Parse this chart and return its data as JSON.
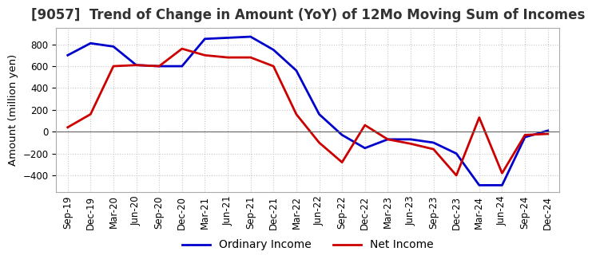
{
  "title": "[9057]  Trend of Change in Amount (YoY) of 12Mo Moving Sum of Incomes",
  "ylabel": "Amount (million yen)",
  "background_color": "#ffffff",
  "grid_color": "#c8c8c8",
  "x_labels": [
    "Sep-19",
    "Dec-19",
    "Mar-20",
    "Jun-20",
    "Sep-20",
    "Dec-20",
    "Mar-21",
    "Jun-21",
    "Sep-21",
    "Dec-21",
    "Mar-22",
    "Jun-22",
    "Sep-22",
    "Dec-22",
    "Mar-23",
    "Jun-23",
    "Sep-23",
    "Dec-23",
    "Mar-24",
    "Jun-24",
    "Sep-24",
    "Dec-24"
  ],
  "ordinary_income": [
    700,
    810,
    780,
    610,
    600,
    600,
    850,
    860,
    870,
    750,
    560,
    160,
    -30,
    -150,
    -70,
    -70,
    -100,
    -200,
    -490,
    -490,
    -50,
    10
  ],
  "net_income": [
    40,
    160,
    600,
    610,
    600,
    760,
    700,
    680,
    680,
    600,
    160,
    -100,
    -280,
    60,
    -70,
    -110,
    -160,
    -400,
    130,
    -380,
    -30,
    -20
  ],
  "ordinary_color": "#0000cc",
  "net_color": "#cc0000",
  "ylim": [
    -550,
    950
  ],
  "yticks": [
    -400,
    -200,
    0,
    200,
    400,
    600,
    800
  ],
  "title_fontsize": 12,
  "axis_fontsize": 9.5,
  "tick_fontsize": 8.5,
  "legend_fontsize": 10
}
